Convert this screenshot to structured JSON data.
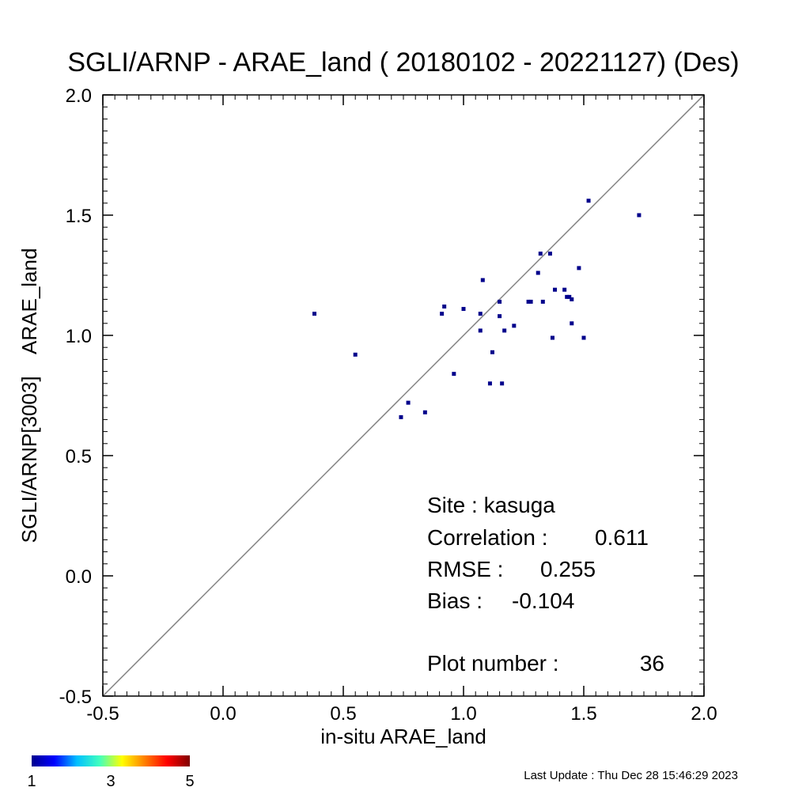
{
  "chart_data": {
    "type": "scatter",
    "title": "SGLI/ARNP - ARAE_land ( 20180102 - 20221127) (Des)",
    "xlabel": "in-situ ARAE_land",
    "ylabel": "SGLI/ARNP[3003]    ARAE_land",
    "xlim": [
      -0.5,
      2.0
    ],
    "ylim": [
      -0.5,
      2.0
    ],
    "xticks": [
      -0.5,
      0.0,
      0.5,
      1.0,
      1.5,
      2.0
    ],
    "yticks": [
      -0.5,
      0.0,
      0.5,
      1.0,
      1.5,
      2.0
    ],
    "xtick_labels": [
      "-0.5",
      "0.0",
      "0.5",
      "1.0",
      "1.5",
      "2.0"
    ],
    "ytick_labels": [
      "-0.5",
      "0.0",
      "0.5",
      "1.0",
      "1.5",
      "2.0"
    ],
    "one_to_one_line": true,
    "grid": false,
    "point_color": "#00008b",
    "line_color": "#808080",
    "points": [
      {
        "x": 0.38,
        "y": 1.09
      },
      {
        "x": 0.55,
        "y": 0.92
      },
      {
        "x": 0.74,
        "y": 0.66
      },
      {
        "x": 0.77,
        "y": 0.72
      },
      {
        "x": 0.84,
        "y": 0.68
      },
      {
        "x": 0.91,
        "y": 1.09
      },
      {
        "x": 0.92,
        "y": 1.12
      },
      {
        "x": 0.96,
        "y": 0.84
      },
      {
        "x": 1.0,
        "y": 1.11
      },
      {
        "x": 1.07,
        "y": 1.09
      },
      {
        "x": 1.07,
        "y": 1.02
      },
      {
        "x": 1.08,
        "y": 1.23
      },
      {
        "x": 1.11,
        "y": 0.8
      },
      {
        "x": 1.12,
        "y": 0.93
      },
      {
        "x": 1.15,
        "y": 1.14
      },
      {
        "x": 1.15,
        "y": 1.08
      },
      {
        "x": 1.16,
        "y": 0.8
      },
      {
        "x": 1.17,
        "y": 1.02
      },
      {
        "x": 1.21,
        "y": 1.04
      },
      {
        "x": 1.27,
        "y": 1.14
      },
      {
        "x": 1.28,
        "y": 1.14
      },
      {
        "x": 1.31,
        "y": 1.26
      },
      {
        "x": 1.32,
        "y": 1.34
      },
      {
        "x": 1.33,
        "y": 1.14
      },
      {
        "x": 1.36,
        "y": 1.34
      },
      {
        "x": 1.37,
        "y": 0.99
      },
      {
        "x": 1.38,
        "y": 1.19
      },
      {
        "x": 1.42,
        "y": 1.19
      },
      {
        "x": 1.43,
        "y": 1.16
      },
      {
        "x": 1.44,
        "y": 1.16
      },
      {
        "x": 1.45,
        "y": 1.15
      },
      {
        "x": 1.45,
        "y": 1.05
      },
      {
        "x": 1.48,
        "y": 1.28
      },
      {
        "x": 1.5,
        "y": 0.99
      },
      {
        "x": 1.52,
        "y": 1.56
      },
      {
        "x": 1.73,
        "y": 1.5
      }
    ],
    "stats": {
      "site_label": "Site : kasuga",
      "correlation_label": "Correlation :",
      "correlation_value": "0.611",
      "rmse_label": "RMSE :",
      "rmse_value": "0.255",
      "bias_label": "Bias :",
      "bias_value": "-0.104",
      "plot_number_label": "Plot number :",
      "plot_number_value": "36"
    },
    "colorbar": {
      "labels": [
        "1",
        "3",
        "5"
      ],
      "min": 1,
      "max": 5,
      "colors": [
        "#00008f",
        "#0000ff",
        "#00bfff",
        "#40ffbf",
        "#ffff00",
        "#ff8000",
        "#ff0000",
        "#800000"
      ]
    }
  },
  "footer": {
    "last_update": "Last Update : Thu Dec 28 15:46:29 2023"
  }
}
